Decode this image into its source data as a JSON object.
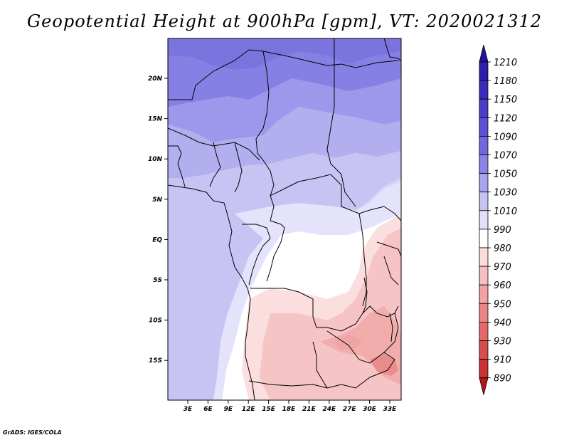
{
  "title": "Geopotential Height at 900hPa [gpm], VT: 2020021312",
  "credit": "GrADS: IGES/COLA",
  "map": {
    "region": "Central and Southern Africa",
    "lon_labels": [
      "3E",
      "6E",
      "9E",
      "12E",
      "15E",
      "18E",
      "21E",
      "24E",
      "27E",
      "30E",
      "33E"
    ],
    "lat_labels": [
      "20N",
      "15N",
      "10N",
      "5N",
      "EQ",
      "5S",
      "10S",
      "15S"
    ]
  },
  "colorbar": {
    "levels": [
      "1210",
      "1180",
      "1150",
      "1120",
      "1090",
      "1070",
      "1050",
      "1030",
      "1010",
      "990",
      "980",
      "970",
      "960",
      "950",
      "940",
      "930",
      "910",
      "890"
    ],
    "colors": [
      "#23149b",
      "#2d1fab",
      "#3a2eb8",
      "#4a3dc6",
      "#5c52d4",
      "#7168de",
      "#8b83e6",
      "#a9a4ee",
      "#c6c3f4",
      "#e2e1fa",
      "#ffffff",
      "#fbdcdc",
      "#f7c0c0",
      "#f2a2a2",
      "#ec8686",
      "#e46a6a",
      "#d84c4c",
      "#c83232",
      "#ad1a1a"
    ]
  }
}
